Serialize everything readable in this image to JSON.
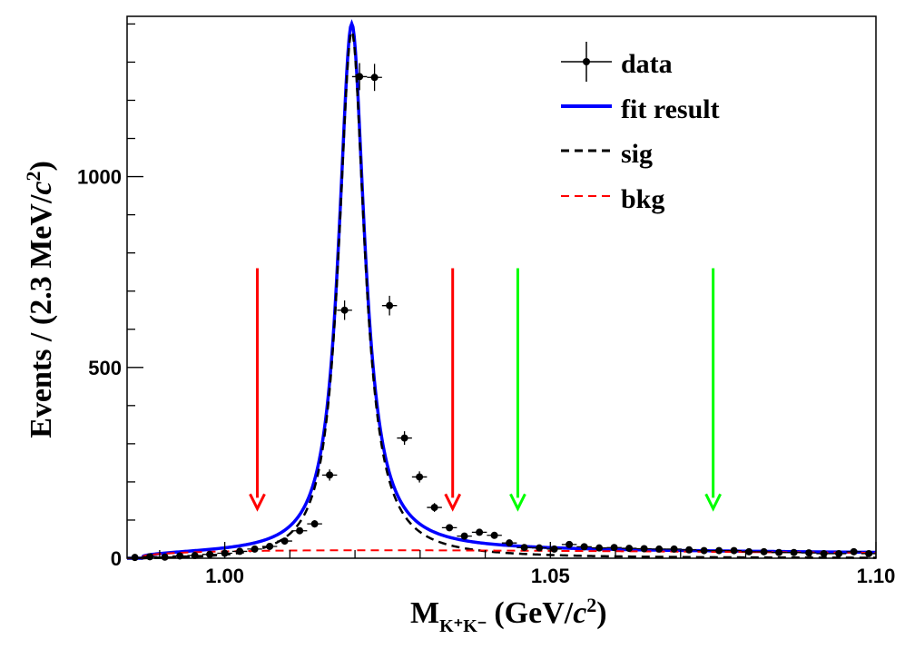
{
  "chart_data": {
    "type": "line",
    "xlabel": "M",
    "xlabel_sub": "K⁺K⁻",
    "xlabel_units": "(GeV/",
    "xlabel_c": "c",
    "xlabel_sup": "2",
    "xlabel_close": ")",
    "ylabel": "Events / (2.3 MeV/",
    "ylabel_c": "c",
    "ylabel_sup": "2",
    "ylabel_close": ")",
    "xlim": [
      0.985,
      1.1
    ],
    "ylim": [
      0,
      1420
    ],
    "x_ticks": [
      {
        "value": 1.0,
        "label": "1.00"
      },
      {
        "value": 1.05,
        "label": "1.05"
      },
      {
        "value": 1.1,
        "label": "1.10"
      }
    ],
    "y_ticks": [
      {
        "value": 0,
        "label": "0"
      },
      {
        "value": 500,
        "label": "500"
      },
      {
        "value": 1000,
        "label": "1000"
      }
    ],
    "legend": [
      {
        "key": "data",
        "label": "data"
      },
      {
        "key": "fit",
        "label": "fit result"
      },
      {
        "key": "sig",
        "label": "sig"
      },
      {
        "key": "bkg",
        "label": "bkg"
      }
    ],
    "colors": {
      "data": "#000000",
      "fit": "#0000ff",
      "sig": "#000000",
      "bkg": "#ff0000",
      "signal_window": "#ff0000",
      "sideband_window": "#00ff00"
    },
    "data_points": [
      {
        "x": 0.9862,
        "y": 2
      },
      {
        "x": 0.9885,
        "y": 4
      },
      {
        "x": 0.9908,
        "y": 3
      },
      {
        "x": 0.9931,
        "y": 6
      },
      {
        "x": 0.9954,
        "y": 7
      },
      {
        "x": 0.9977,
        "y": 10
      },
      {
        "x": 1.0,
        "y": 13
      },
      {
        "x": 1.0023,
        "y": 18
      },
      {
        "x": 1.0046,
        "y": 24
      },
      {
        "x": 1.0069,
        "y": 31
      },
      {
        "x": 1.0092,
        "y": 45
      },
      {
        "x": 1.0115,
        "y": 72
      },
      {
        "x": 1.0138,
        "y": 90
      },
      {
        "x": 1.0161,
        "y": 218
      },
      {
        "x": 1.0184,
        "y": 650
      },
      {
        "x": 1.0207,
        "y": 1262
      },
      {
        "x": 1.023,
        "y": 1260
      },
      {
        "x": 1.0253,
        "y": 662
      },
      {
        "x": 1.0276,
        "y": 315
      },
      {
        "x": 1.0299,
        "y": 213
      },
      {
        "x": 1.0322,
        "y": 133
      },
      {
        "x": 1.0345,
        "y": 80
      },
      {
        "x": 1.0368,
        "y": 58
      },
      {
        "x": 1.0391,
        "y": 68
      },
      {
        "x": 1.0414,
        "y": 60
      },
      {
        "x": 1.0437,
        "y": 40
      },
      {
        "x": 1.046,
        "y": 28
      },
      {
        "x": 1.0483,
        "y": 27
      },
      {
        "x": 1.0506,
        "y": 24
      },
      {
        "x": 1.0529,
        "y": 36
      },
      {
        "x": 1.0552,
        "y": 30
      },
      {
        "x": 1.0575,
        "y": 27
      },
      {
        "x": 1.0598,
        "y": 28
      },
      {
        "x": 1.0621,
        "y": 26
      },
      {
        "x": 1.0644,
        "y": 25
      },
      {
        "x": 1.0667,
        "y": 24
      },
      {
        "x": 1.069,
        "y": 24
      },
      {
        "x": 1.0713,
        "y": 22
      },
      {
        "x": 1.0736,
        "y": 20
      },
      {
        "x": 1.0759,
        "y": 20
      },
      {
        "x": 1.0782,
        "y": 20
      },
      {
        "x": 1.0805,
        "y": 17
      },
      {
        "x": 1.0828,
        "y": 17
      },
      {
        "x": 1.0851,
        "y": 15
      },
      {
        "x": 1.0874,
        "y": 15
      },
      {
        "x": 1.0897,
        "y": 14
      },
      {
        "x": 1.092,
        "y": 12
      },
      {
        "x": 1.0943,
        "y": 12
      },
      {
        "x": 1.0966,
        "y": 17
      },
      {
        "x": 1.0989,
        "y": 12
      }
    ],
    "fit_params": {
      "mass": 1.0195,
      "width": 0.0048,
      "signal_peak": 1380,
      "threshold": 0.9874,
      "fit_peak": 1420
    },
    "arrows": [
      {
        "x": 1.005,
        "color_key": "signal_window"
      },
      {
        "x": 1.035,
        "color_key": "signal_window"
      },
      {
        "x": 1.045,
        "color_key": "sideband_window"
      },
      {
        "x": 1.075,
        "color_key": "sideband_window"
      }
    ],
    "arrow_y_range": [
      760,
      130
    ]
  }
}
